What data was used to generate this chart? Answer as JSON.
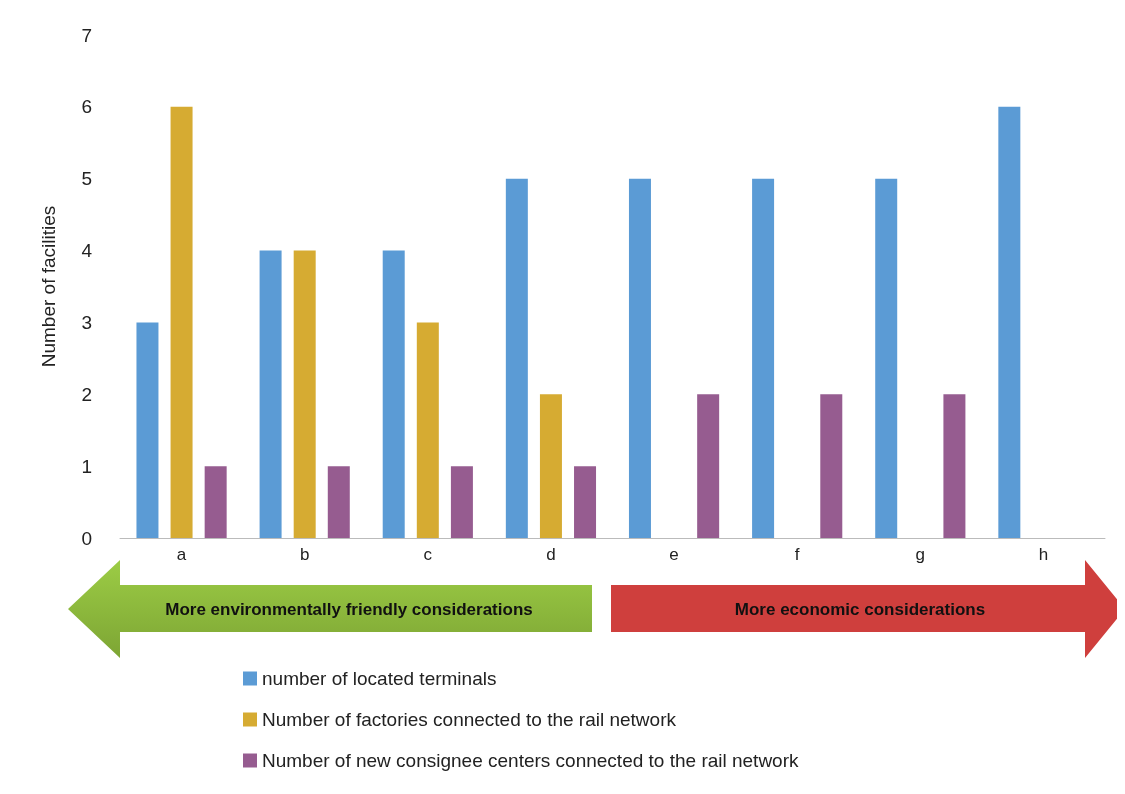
{
  "chart_data": {
    "type": "bar",
    "ylabel": "Number of facilities",
    "categories": [
      "a",
      "b",
      "c",
      "d",
      "e",
      "f",
      "g",
      "h"
    ],
    "series": [
      {
        "name": "number of located terminals",
        "color": "#5b9bd5",
        "values": [
          3,
          4,
          4,
          5,
          5,
          5,
          5,
          6
        ]
      },
      {
        "name": "Number of factories connected to the rail network",
        "color": "#d6ab32",
        "values": [
          6,
          4,
          3,
          2,
          null,
          null,
          null,
          null
        ]
      },
      {
        "name": "Number of new consignee centers connected to the rail network",
        "color": "#965c90",
        "values": [
          1,
          1,
          1,
          1,
          2,
          2,
          2,
          null
        ]
      }
    ],
    "ylim": [
      0,
      7
    ],
    "yticks": [
      0,
      1,
      2,
      3,
      4,
      5,
      6,
      7
    ],
    "grid": false,
    "legend": "bottom",
    "annotations": [
      "More environmentally friendly considerations",
      "More economic considerations"
    ]
  }
}
